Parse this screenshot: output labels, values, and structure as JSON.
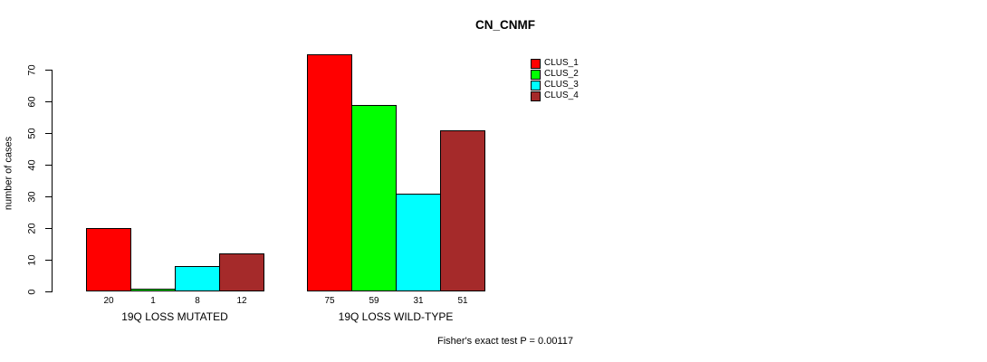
{
  "page": {
    "background": "#ffffff",
    "text_color": "#000000"
  },
  "chart_data": {
    "type": "bar",
    "title": "CN_CNMF",
    "ylabel": "number of cases",
    "xlabel": "",
    "ylim": [
      0,
      70
    ],
    "yticks": [
      0,
      10,
      20,
      30,
      40,
      50,
      60,
      70
    ],
    "grid": false,
    "legend_position": "top-right",
    "categories": [
      "19Q LOSS MUTATED",
      "19Q LOSS WILD-TYPE"
    ],
    "series": [
      {
        "name": "CLUS_1",
        "color": "#ff0000",
        "values": [
          20,
          75
        ]
      },
      {
        "name": "CLUS_2",
        "color": "#00ff00",
        "values": [
          1,
          59
        ]
      },
      {
        "name": "CLUS_3",
        "color": "#00ffff",
        "values": [
          8,
          31
        ]
      },
      {
        "name": "CLUS_4",
        "color": "#a52a2a",
        "values": [
          12,
          51
        ]
      }
    ],
    "bar_value_labels": [
      [
        20,
        1,
        8,
        12
      ],
      [
        75,
        59,
        31,
        51
      ]
    ]
  },
  "footer": {
    "note": "Fisher's exact test P = 0.00117"
  }
}
